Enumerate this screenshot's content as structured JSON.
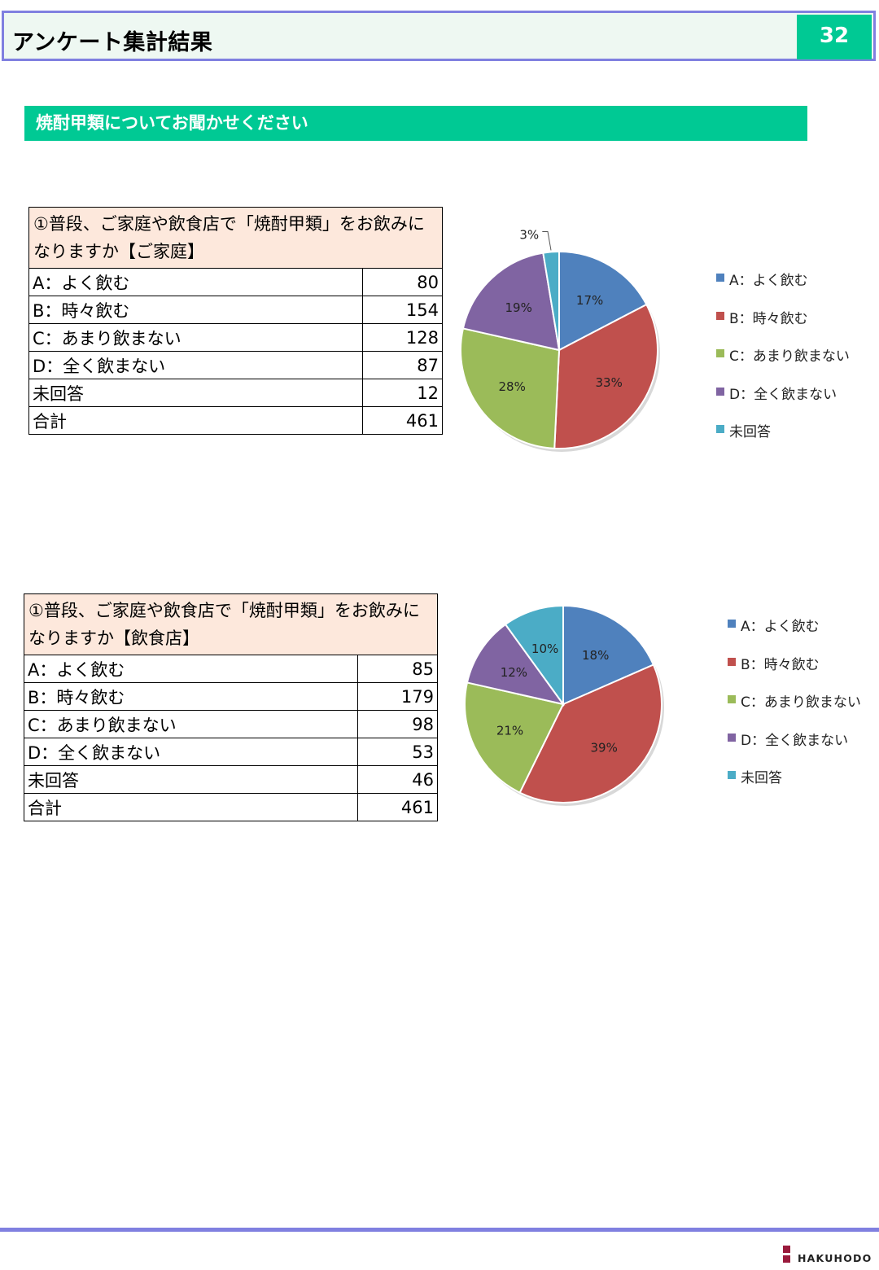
{
  "header": {
    "title": "アンケート集計結果",
    "page_number": "32"
  },
  "section": {
    "title": "焼酎甲類についてお聞かせください"
  },
  "footer": {
    "logo_text": "HAKUHODO"
  },
  "colors": {
    "A": "#4f81bd",
    "B": "#c0504d",
    "C": "#9bbb59",
    "D": "#8064a2",
    "E": "#4bacc6",
    "accent": "#00c994",
    "frame": "#8080e0"
  },
  "tables": [
    {
      "question_line1": "①普段、ご家庭や飲食店で「焼酎甲類」をお飲みに",
      "question_line2": "なりますか【ご家庭】",
      "rows": [
        {
          "label": "A：よく飲む",
          "value": "80"
        },
        {
          "label": "B：時々飲む",
          "value": "154"
        },
        {
          "label": "C：あまり飲まない",
          "value": "128"
        },
        {
          "label": "D：全く飲まない",
          "value": "87"
        },
        {
          "label": "未回答",
          "value": "12"
        },
        {
          "label": "合計",
          "value": "461"
        }
      ]
    },
    {
      "question_line1": "①普段、ご家庭や飲食店で「焼酎甲類」をお飲みに",
      "question_line2": "なりますか【飲食店】",
      "rows": [
        {
          "label": "A：よく飲む",
          "value": "85"
        },
        {
          "label": "B：時々飲む",
          "value": "179"
        },
        {
          "label": "C：あまり飲まない",
          "value": "98"
        },
        {
          "label": "D：全く飲まない",
          "value": "53"
        },
        {
          "label": "未回答",
          "value": "46"
        },
        {
          "label": "合計",
          "value": "461"
        }
      ]
    }
  ],
  "chart_data": [
    {
      "type": "pie",
      "categories": [
        "A：よく飲む",
        "B：時々飲む",
        "C：あまり飲まない",
        "D：全く飲まない",
        "未回答"
      ],
      "values": [
        80,
        154,
        128,
        87,
        12
      ],
      "labels": [
        "17%",
        "33%",
        "28%",
        "19%",
        "3%"
      ],
      "legend": "right"
    },
    {
      "type": "pie",
      "categories": [
        "A：よく飲む",
        "B：時々飲む",
        "C：あまり飲まない",
        "D：全く飲まない",
        "未回答"
      ],
      "values": [
        85,
        179,
        98,
        53,
        46
      ],
      "labels": [
        "18%",
        "39%",
        "21%",
        "12%",
        "10%"
      ],
      "legend": "right"
    }
  ]
}
